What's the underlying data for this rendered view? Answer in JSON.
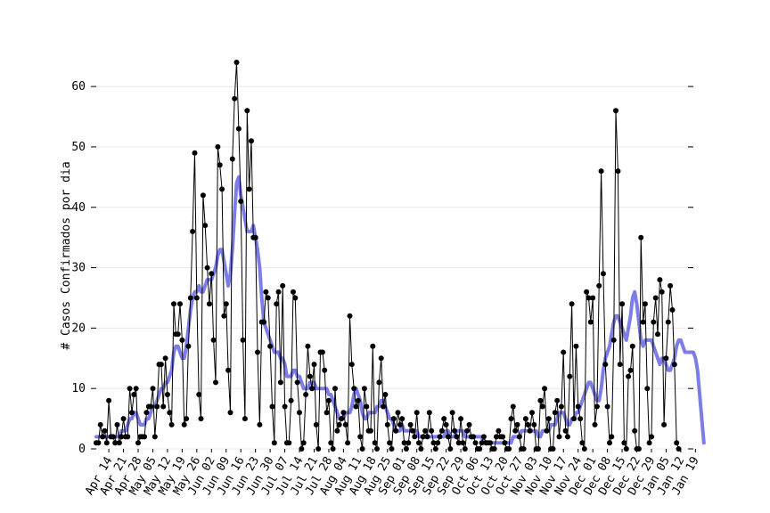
{
  "chart_data": {
    "type": "line",
    "title": "",
    "xlabel": "",
    "ylabel": "# Casos Confirmados por dia",
    "ylim": [
      0,
      64
    ],
    "yticks": [
      0,
      10,
      20,
      30,
      40,
      50,
      60
    ],
    "x_start": "2020-04-08",
    "x_end": "2021-01-18",
    "xticks": [
      "Apr 14",
      "Apr 21",
      "Apr 28",
      "May 05",
      "May 12",
      "May 19",
      "May 26",
      "Jun 02",
      "Jun 09",
      "Jun 16",
      "Jun 23",
      "Jun 30",
      "Jul 07",
      "Jul 14",
      "Jul 21",
      "Jul 28",
      "Aug 04",
      "Aug 11",
      "Aug 18",
      "Aug 25",
      "Sep 01",
      "Sep 08",
      "Sep 15",
      "Sep 22",
      "Sep 29",
      "Oct 06",
      "Oct 13",
      "Oct 20",
      "Oct 27",
      "Nov 03",
      "Nov 10",
      "Nov 17",
      "Nov 24",
      "Dec 01",
      "Dec 08",
      "Dec 15",
      "Dec 22",
      "Dec 29",
      "Jan 05",
      "Jan 12",
      "Jan 19"
    ],
    "xtick_dates": [
      "2020-04-14",
      "2020-04-21",
      "2020-04-28",
      "2020-05-05",
      "2020-05-12",
      "2020-05-19",
      "2020-05-26",
      "2020-06-02",
      "2020-06-09",
      "2020-06-16",
      "2020-06-23",
      "2020-06-30",
      "2020-07-07",
      "2020-07-14",
      "2020-07-21",
      "2020-07-28",
      "2020-08-04",
      "2020-08-11",
      "2020-08-18",
      "2020-08-25",
      "2020-09-01",
      "2020-09-08",
      "2020-09-15",
      "2020-09-22",
      "2020-09-29",
      "2020-10-06",
      "2020-10-13",
      "2020-10-20",
      "2020-10-27",
      "2020-11-03",
      "2020-11-10",
      "2020-11-17",
      "2020-11-24",
      "2020-12-01",
      "2020-12-08",
      "2020-12-15",
      "2020-12-22",
      "2020-12-29",
      "2021-01-05",
      "2021-01-12",
      "2021-01-19"
    ],
    "grid": true,
    "series": [
      {
        "name": "",
        "style": "black-line-with-dots",
        "color": "#000000",
        "values": [
          1,
          1,
          4,
          2,
          3,
          1,
          8,
          2,
          2,
          1,
          4,
          1,
          2,
          5,
          2,
          2,
          10,
          6,
          9,
          10,
          1,
          2,
          2,
          2,
          6,
          7,
          7,
          10,
          2,
          7,
          14,
          14,
          7,
          15,
          9,
          6,
          4,
          24,
          19,
          19,
          24,
          18,
          4,
          5,
          17,
          25,
          36,
          49,
          25,
          9,
          5,
          42,
          37,
          30,
          24,
          29,
          18,
          11,
          50,
          47,
          43,
          22,
          24,
          13,
          6,
          48,
          58,
          64,
          53,
          41,
          18,
          5,
          56,
          43,
          51,
          35,
          35,
          16,
          4,
          21,
          21,
          26,
          25,
          17,
          7,
          1,
          24,
          26,
          11,
          27,
          7,
          1,
          1,
          8,
          26,
          25,
          11,
          6,
          0,
          1,
          9,
          17,
          12,
          10,
          14,
          4,
          0,
          16,
          16,
          13,
          6,
          8,
          1,
          0,
          10,
          3,
          4,
          5,
          6,
          4,
          1,
          22,
          14,
          10,
          7,
          8,
          2,
          0,
          10,
          7,
          3,
          3,
          17,
          1,
          0,
          11,
          15,
          7,
          9,
          4,
          1,
          0,
          5,
          3,
          6,
          4,
          5,
          1,
          0,
          1,
          4,
          3,
          2,
          6,
          1,
          0,
          2,
          3,
          2,
          6,
          3,
          1,
          0,
          1,
          2,
          3,
          5,
          4,
          2,
          0,
          6,
          3,
          2,
          1,
          5,
          1,
          0,
          3,
          4,
          2,
          2,
          1,
          0,
          0,
          1,
          2,
          1,
          1,
          1,
          0,
          0,
          2,
          3,
          2,
          2,
          1,
          0,
          0,
          5,
          7,
          3,
          4,
          2,
          0,
          0,
          5,
          4,
          3,
          6,
          4,
          0,
          0,
          8,
          7,
          10,
          3,
          5,
          0,
          0,
          6,
          8,
          2,
          7,
          16,
          3,
          2,
          12,
          24,
          5,
          17,
          7,
          5,
          1,
          0,
          26,
          25,
          21,
          25,
          4,
          7,
          27,
          46,
          29,
          14,
          7,
          1,
          2,
          18,
          56,
          46,
          14,
          24,
          1,
          0,
          12,
          13,
          17,
          3,
          0,
          0,
          35,
          21,
          24,
          10,
          1,
          2,
          21,
          25,
          19,
          28,
          26,
          4,
          15,
          21,
          27,
          23,
          14,
          1,
          0
        ]
      },
      {
        "name": "",
        "style": "smoothed-moving-average",
        "color": "#6f6fe6",
        "values": [
          2,
          2,
          2,
          2,
          2,
          2,
          2,
          2,
          2,
          2,
          2,
          2,
          3,
          3,
          3,
          4,
          5,
          5,
          6,
          6,
          5,
          4,
          4,
          4,
          5,
          5,
          6,
          7,
          7,
          8,
          9,
          10,
          10,
          11,
          11,
          12,
          13,
          16,
          17,
          17,
          16,
          15,
          15,
          17,
          20,
          23,
          25,
          26,
          26,
          27,
          26,
          26,
          27,
          28,
          28,
          28,
          29,
          30,
          32,
          33,
          33,
          31,
          29,
          27,
          29,
          33,
          39,
          44,
          45,
          42,
          40,
          38,
          36,
          36,
          36,
          37,
          35,
          33,
          30,
          25,
          21,
          20,
          19,
          18,
          17,
          16,
          16,
          16,
          15,
          15,
          14,
          12,
          12,
          12,
          13,
          13,
          12,
          12,
          11,
          10,
          10,
          10,
          11,
          11,
          11,
          10,
          10,
          10,
          10,
          10,
          10,
          9,
          9,
          8,
          7,
          6,
          5,
          5,
          5,
          6,
          6,
          6,
          7,
          9,
          10,
          9,
          8,
          6,
          5,
          5,
          6,
          6,
          6,
          6,
          7,
          7,
          8,
          8,
          7,
          6,
          5,
          5,
          4,
          3,
          3,
          3,
          4,
          3,
          3,
          3,
          3,
          3,
          3,
          3,
          2,
          2,
          2,
          2,
          2,
          2,
          2,
          2,
          2,
          2,
          2,
          2,
          2,
          3,
          3,
          2,
          2,
          2,
          3,
          3,
          3,
          3,
          2,
          2,
          2,
          2,
          2,
          2,
          2,
          2,
          2,
          1,
          1,
          1,
          1,
          1,
          1,
          1,
          1,
          1,
          1,
          1,
          1,
          1,
          1,
          2,
          2,
          2,
          2,
          3,
          3,
          3,
          3,
          3,
          3,
          3,
          3,
          2,
          2,
          3,
          3,
          3,
          3,
          4,
          4,
          4,
          5,
          6,
          6,
          6,
          5,
          4,
          4,
          5,
          5,
          6,
          6,
          7,
          8,
          9,
          10,
          11,
          11,
          10,
          9,
          8,
          8,
          10,
          13,
          15,
          16,
          17,
          19,
          21,
          22,
          22,
          21,
          20,
          19,
          18,
          20,
          22,
          25,
          26,
          24,
          21,
          18,
          17,
          18,
          18,
          18,
          18,
          17,
          16,
          15,
          14,
          15,
          15,
          14,
          13,
          13,
          14,
          15,
          17,
          18,
          18,
          17,
          16,
          16,
          16,
          16,
          16,
          15,
          13,
          9,
          5,
          1
        ]
      }
    ]
  }
}
